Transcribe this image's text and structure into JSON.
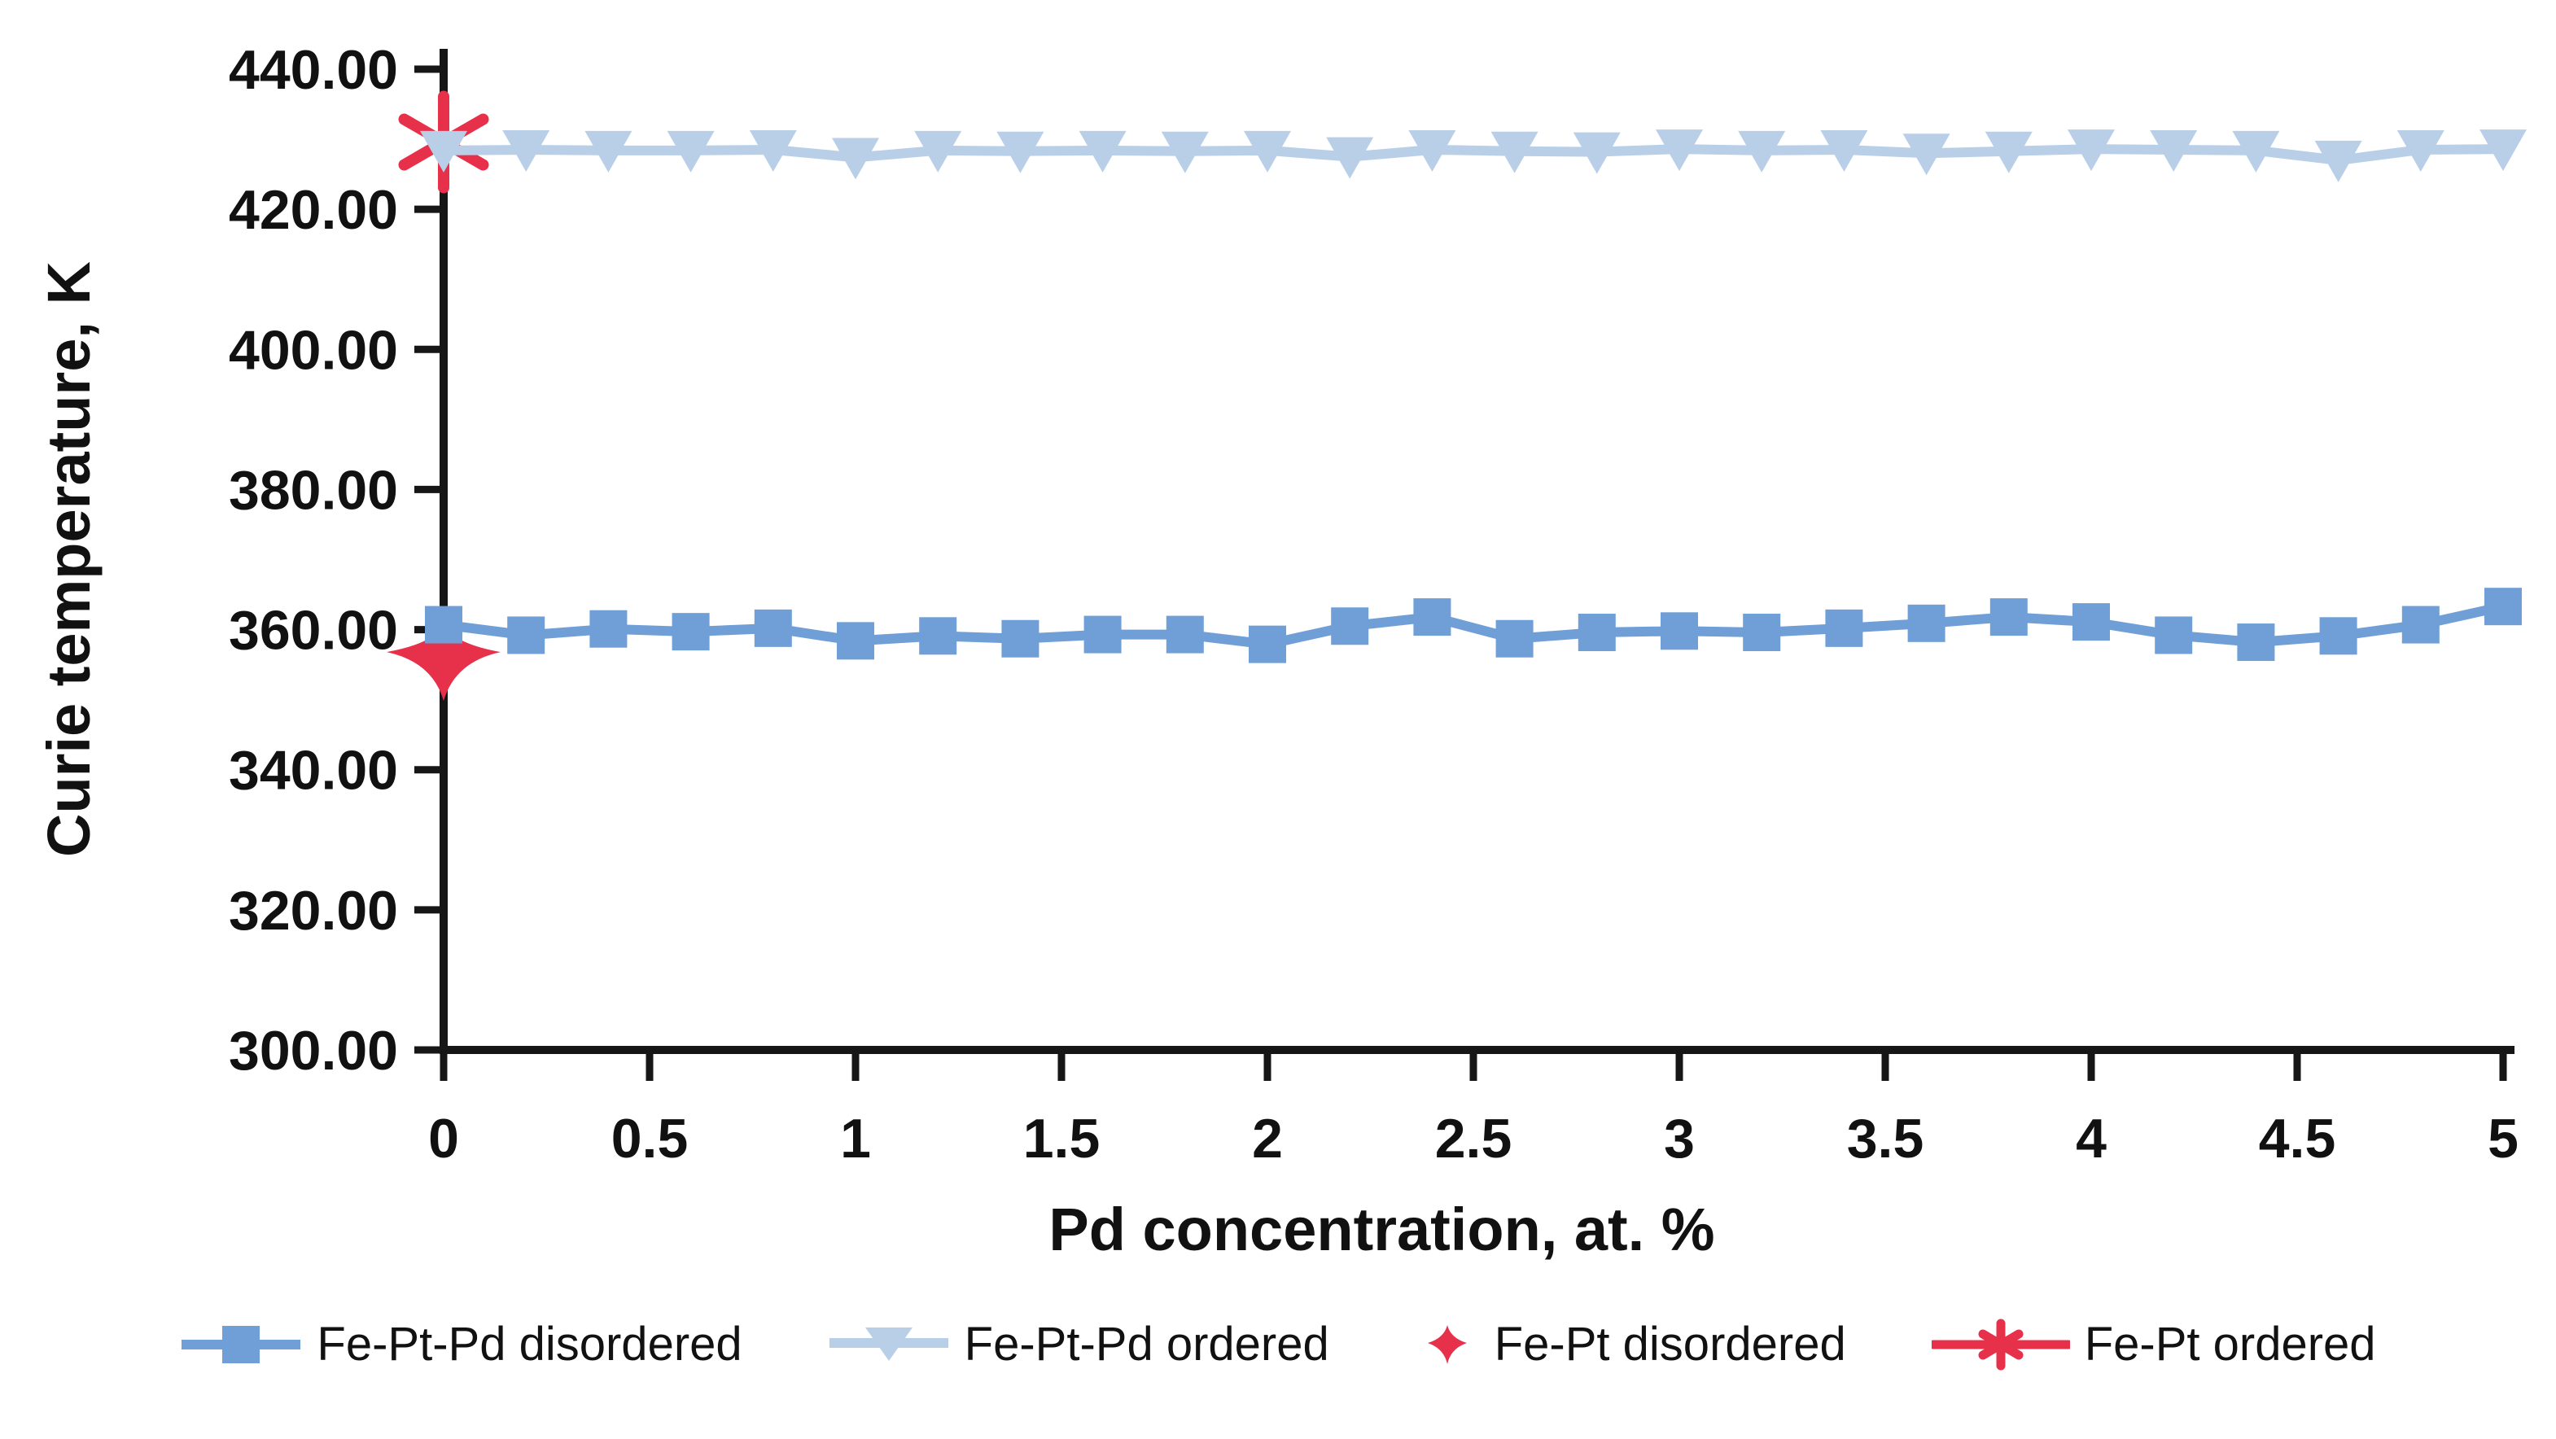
{
  "chart_data": {
    "type": "line",
    "title": "",
    "xlabel": "Pd concentration, at. %",
    "ylabel": "Curie temperature, K",
    "xlim": [
      0,
      5
    ],
    "ylim": [
      300,
      440
    ],
    "x_ticks": [
      0,
      0.5,
      1,
      1.5,
      2,
      2.5,
      3,
      3.5,
      4,
      4.5,
      5
    ],
    "x_tick_labels": [
      "0",
      "0.5",
      "1",
      "1.5",
      "2",
      "2.5",
      "3",
      "3.5",
      "4",
      "4.5",
      "5"
    ],
    "y_ticks": [
      300,
      320,
      340,
      360,
      380,
      400,
      420,
      440
    ],
    "y_tick_labels": [
      "300.00",
      "320.00",
      "340.00",
      "360.00",
      "380.00",
      "400.00",
      "420.00",
      "440.00"
    ],
    "grid": false,
    "legend_position": "bottom",
    "axis_color": "#161616",
    "series": [
      {
        "name": "Fe-Pt-Pd disordered",
        "marker": "square",
        "color": "#6f9fd6",
        "line": true,
        "x": [
          0,
          0.2,
          0.4,
          0.6,
          0.8,
          1,
          1.2,
          1.4,
          1.6,
          1.8,
          2,
          2.2,
          2.4,
          2.6,
          2.8,
          3,
          3.2,
          3.4,
          3.6,
          3.8,
          4,
          4.2,
          4.4,
          4.6,
          4.8,
          5
        ],
        "y": [
          360.7,
          359.2,
          360.1,
          359.7,
          360.2,
          358.4,
          359.1,
          358.7,
          359.3,
          359.3,
          357.9,
          360.5,
          361.8,
          358.7,
          359.6,
          359.8,
          359.6,
          360.2,
          360.9,
          361.8,
          361.1,
          359.2,
          358.2,
          359.1,
          360.7,
          363.3
        ]
      },
      {
        "name": "Fe-Pt-Pd ordered",
        "marker": "triangle-down",
        "color": "#b9cfe8",
        "line": true,
        "x": [
          0,
          0.2,
          0.4,
          0.6,
          0.8,
          1,
          1.2,
          1.4,
          1.6,
          1.8,
          2,
          2.2,
          2.4,
          2.6,
          2.8,
          3,
          3.2,
          3.4,
          3.6,
          3.8,
          4,
          4.2,
          4.4,
          4.6,
          4.8,
          5
        ],
        "y": [
          428.4,
          428.5,
          428.4,
          428.4,
          428.5,
          427.4,
          428.4,
          428.3,
          428.4,
          428.3,
          428.4,
          427.5,
          428.5,
          428.3,
          428.2,
          428.6,
          428.4,
          428.5,
          428.0,
          428.3,
          428.6,
          428.5,
          428.4,
          427.0,
          428.5,
          428.6
        ]
      },
      {
        "name": "Fe-Pt disordered",
        "marker": "four-point-star",
        "color": "#e7304a",
        "line": false,
        "x": [
          0
        ],
        "y": [
          356.8
        ]
      },
      {
        "name": "Fe-Pt ordered",
        "marker": "asterisk",
        "color": "#e7304a",
        "line": true,
        "x": [
          0
        ],
        "y": [
          429.6
        ]
      }
    ]
  }
}
